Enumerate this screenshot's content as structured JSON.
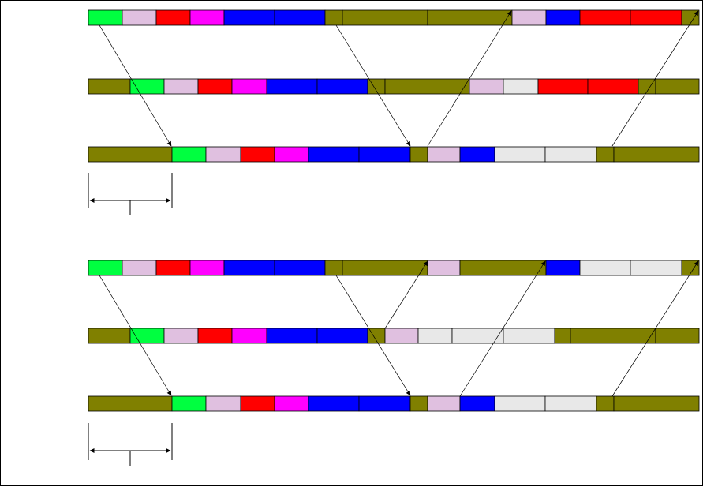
{
  "colors": {
    "G": "#00ff40",
    "L": "#e0c0e0",
    "R": "#ff0000",
    "M": "#ff00ff",
    "B": "#0000ff",
    "O": "#808000",
    "W": "#e8e8e8",
    "line": "#000000"
  },
  "diagrams": [
    {
      "rows": [
        [
          "G",
          "L",
          "R",
          "M",
          "B",
          "B",
          "O",
          "O",
          "O",
          "L",
          "B",
          "R",
          "R",
          "O"
        ],
        [
          "O",
          "G",
          "L",
          "R",
          "M",
          "B",
          "B",
          "O",
          "O",
          "L",
          "W",
          "R",
          "R",
          "O",
          "O"
        ],
        [
          "O",
          "G",
          "L",
          "R",
          "M",
          "B",
          "B",
          "O",
          "L",
          "B",
          "W",
          "W",
          "O",
          "O"
        ]
      ]
    },
    {
      "rows": [
        [
          "G",
          "L",
          "R",
          "M",
          "B",
          "B",
          "O",
          "O",
          "L",
          "O",
          "B",
          "W",
          "W",
          "O"
        ],
        [
          "O",
          "G",
          "L",
          "R",
          "M",
          "B",
          "B",
          "O",
          "L",
          "W",
          "W",
          "W",
          "O",
          "O",
          "O"
        ],
        [
          "O",
          "G",
          "L",
          "R",
          "M",
          "B",
          "B",
          "O",
          "L",
          "B",
          "W",
          "W",
          "O",
          "O"
        ]
      ]
    }
  ]
}
